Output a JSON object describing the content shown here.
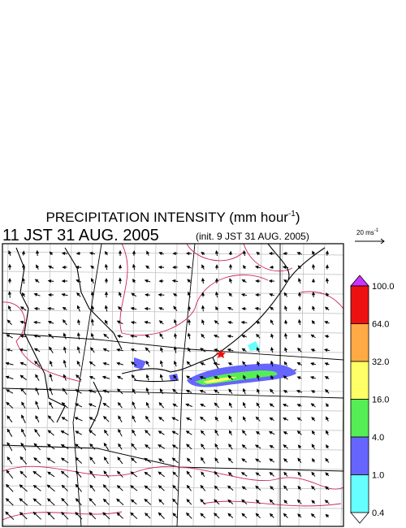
{
  "header": {
    "title": "PRECIPITATION INTENSITY (mm hour",
    "title_superscript": "-1",
    "title_end": ")",
    "time": "11 JST 31 AUG. 2005",
    "init": "(init. 9 JST 31 AUG. 2005)"
  },
  "vector_scale": {
    "label": "20 ms",
    "superscript": "-1"
  },
  "colorbar": {
    "labels": [
      "100.0",
      "64.0",
      "32.0",
      "16.0",
      "4.0",
      "1.0",
      "0.4"
    ],
    "colors": [
      "#cc33ff",
      "#ee1111",
      "#ffaa44",
      "#ffff66",
      "#55ee55",
      "#6666ff",
      "#66ffff",
      "#ffffff"
    ]
  }
}
